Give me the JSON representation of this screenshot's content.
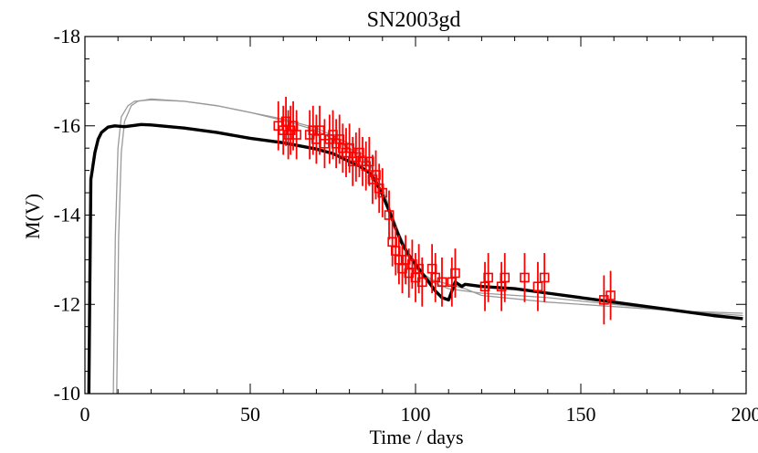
{
  "chart_data": {
    "type": "line",
    "title": "SN2003gd",
    "xlabel": "Time / days",
    "ylabel": "M(V)",
    "xlim": [
      0,
      200
    ],
    "ylim": [
      -10,
      -18
    ],
    "y_inverted": true,
    "x_ticks": [
      0,
      50,
      100,
      150,
      200
    ],
    "x_tick_labels": [
      "0",
      "50",
      "100",
      "150",
      "200"
    ],
    "y_ticks": [
      -10,
      -12,
      -14,
      -16,
      -18
    ],
    "y_tick_labels": [
      "-10",
      "-12",
      "-14",
      "-16",
      "-18"
    ],
    "grid": false,
    "colors": {
      "model": "#000000",
      "alt_models": "#9a9a9a",
      "observed": "#ff0000"
    },
    "model_curve": {
      "x": [
        1.2,
        1.5,
        1.8,
        2.2,
        3,
        4,
        5,
        7,
        9,
        12,
        15,
        17,
        20,
        30,
        40,
        50,
        60,
        70,
        75,
        80,
        83,
        86,
        88,
        90,
        92,
        94,
        96,
        98,
        100,
        102,
        104,
        106,
        108,
        110,
        112,
        114,
        115,
        120,
        130,
        140,
        150,
        160,
        170,
        180,
        190,
        199
      ],
      "y": [
        -10,
        -12.5,
        -14.8,
        -15.0,
        -15.4,
        -15.7,
        -15.85,
        -15.97,
        -16.0,
        -15.98,
        -16.01,
        -16.03,
        -16.02,
        -15.95,
        -15.85,
        -15.72,
        -15.62,
        -15.48,
        -15.38,
        -15.2,
        -15.1,
        -14.95,
        -14.75,
        -14.45,
        -14.1,
        -13.7,
        -13.35,
        -13.1,
        -12.9,
        -12.7,
        -12.5,
        -12.3,
        -12.15,
        -12.1,
        -12.5,
        -12.4,
        -12.45,
        -12.4,
        -12.35,
        -12.25,
        -12.15,
        -12.05,
        -11.95,
        -11.85,
        -11.75,
        -11.68
      ]
    },
    "alt_model_curves": [
      {
        "x": [
          8.6,
          9.2,
          10,
          11,
          13,
          15,
          20,
          30,
          40,
          50,
          60,
          70,
          80,
          85,
          90,
          95,
          100,
          105,
          110,
          115,
          120,
          140,
          160,
          180,
          199
        ],
        "y": [
          -10,
          -13.5,
          -15.5,
          -16.2,
          -16.45,
          -16.55,
          -16.58,
          -16.55,
          -16.45,
          -16.3,
          -16.15,
          -15.95,
          -15.6,
          -15.3,
          -14.6,
          -13.6,
          -12.8,
          -12.5,
          -12.35,
          -12.3,
          -12.25,
          -12.15,
          -12.0,
          -11.85,
          -11.75
        ]
      },
      {
        "x": [
          9.6,
          10.2,
          11,
          12,
          14,
          16,
          20,
          30,
          40,
          50,
          60,
          70,
          80,
          85,
          90,
          95,
          100,
          105,
          110,
          115,
          120,
          140,
          160,
          180,
          199
        ],
        "y": [
          -10,
          -13.5,
          -15.4,
          -16.1,
          -16.45,
          -16.55,
          -16.6,
          -16.55,
          -16.45,
          -16.3,
          -16.12,
          -15.9,
          -15.5,
          -15.2,
          -14.5,
          -13.5,
          -12.8,
          -12.55,
          -12.45,
          -12.35,
          -12.2,
          -12.05,
          -11.95,
          -11.85,
          -11.8
        ]
      }
    ],
    "observations": {
      "x": [
        58.5,
        60.0,
        60.8,
        61.5,
        62.2,
        63.0,
        64.0,
        68.0,
        69.0,
        70.0,
        71.0,
        72.5,
        74.0,
        75.0,
        76.0,
        77.0,
        78.0,
        79.0,
        80.0,
        81.0,
        82.0,
        83.0,
        84.0,
        85.0,
        86.0,
        87.0,
        88.0,
        89.0,
        90.0,
        92.0,
        93.0,
        94.0,
        95.0,
        96.0,
        97.0,
        98.0,
        99.0,
        100.0,
        101.0,
        102.0,
        105.0,
        106.0,
        108.0,
        111.0,
        112.0,
        121.0,
        122.0,
        126.0,
        127.0,
        133.0,
        137.0,
        139.0,
        157.0,
        159.0
      ],
      "y": [
        -16.0,
        -15.9,
        -16.1,
        -15.8,
        -15.9,
        -16.0,
        -15.8,
        -15.8,
        -15.9,
        -15.7,
        -15.9,
        -15.6,
        -15.7,
        -15.8,
        -15.6,
        -15.7,
        -15.5,
        -15.4,
        -15.5,
        -15.2,
        -15.3,
        -15.4,
        -15.2,
        -15.1,
        -15.2,
        -14.8,
        -14.9,
        -14.6,
        -14.5,
        -14.0,
        -13.4,
        -13.2,
        -13.0,
        -12.8,
        -13.0,
        -12.7,
        -12.9,
        -12.6,
        -12.8,
        -12.5,
        -12.8,
        -12.6,
        -12.5,
        -12.5,
        -12.7,
        -12.4,
        -12.6,
        -12.4,
        -12.6,
        -12.6,
        -12.4,
        -12.6,
        -12.1,
        -12.2
      ],
      "error": 0.55
    }
  }
}
